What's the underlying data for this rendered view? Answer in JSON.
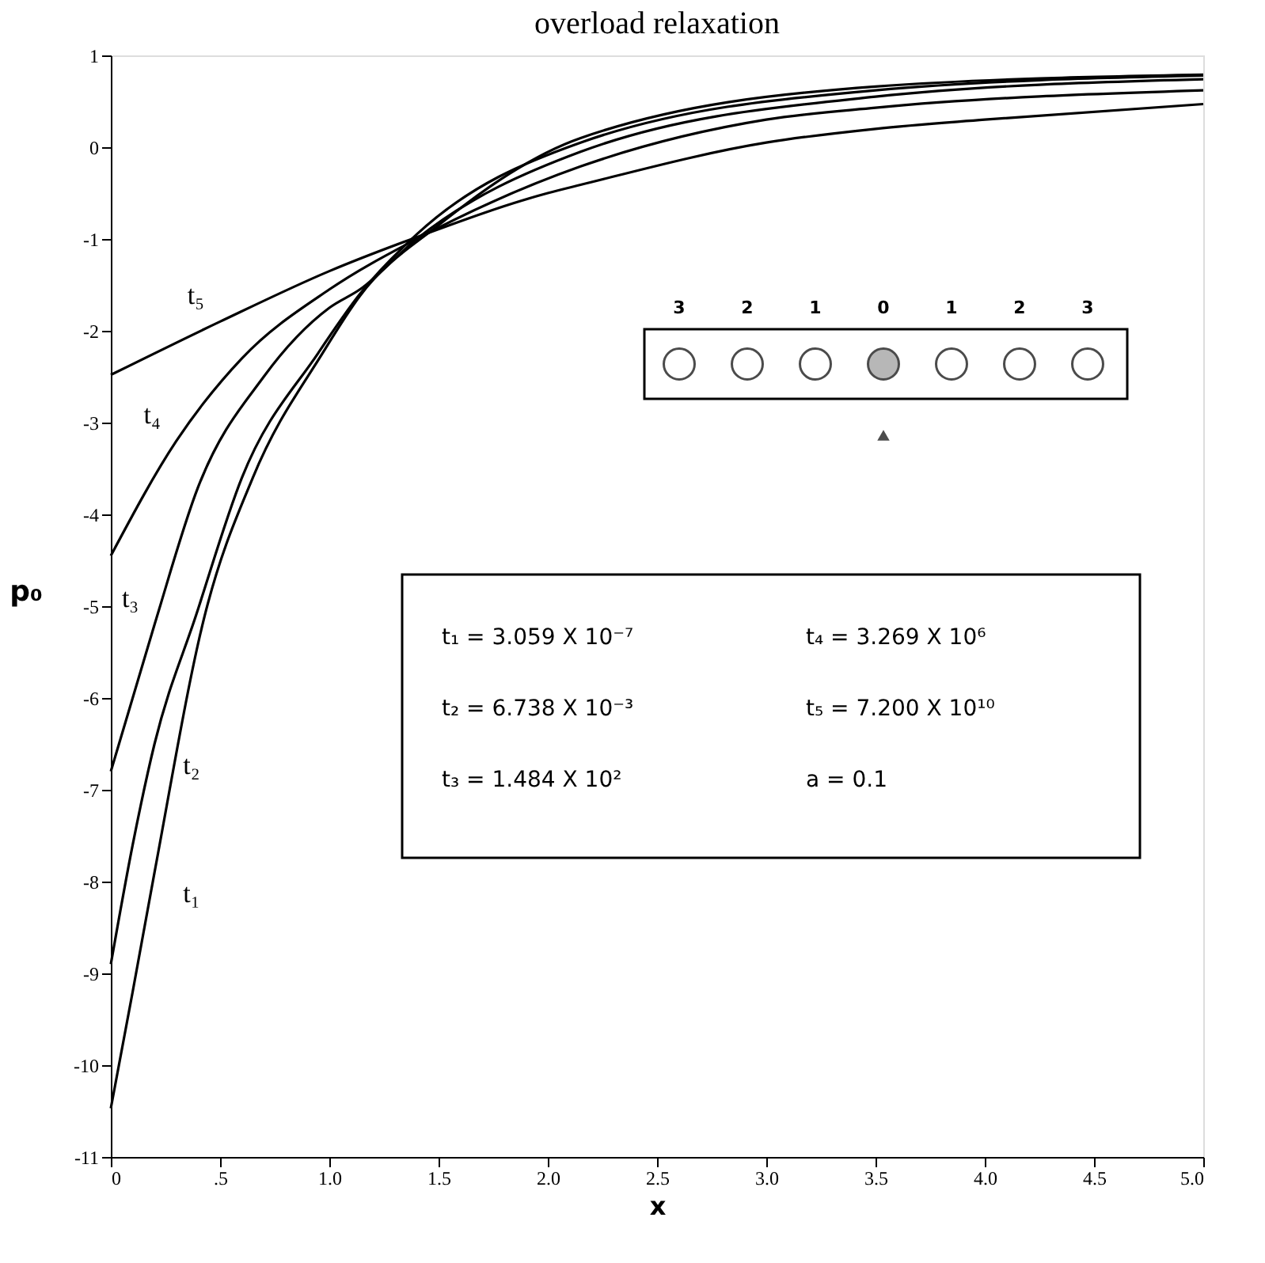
{
  "chart_data": {
    "type": "line",
    "title": "overload relaxation",
    "xlabel": "x",
    "ylabel": "p₀",
    "xlim": [
      0,
      5
    ],
    "ylim": [
      -11,
      1
    ],
    "xticks": [
      0,
      {
        "value": 0.5,
        "label": ".5"
      },
      {
        "value": 1,
        "label": "1.0"
      },
      {
        "value": 1.5,
        "label": "1.5"
      },
      {
        "value": 2,
        "label": "2.0"
      },
      {
        "value": 2.5,
        "label": "2.5"
      },
      {
        "value": 3,
        "label": "3.0"
      },
      {
        "value": 3.5,
        "label": "3.5"
      },
      {
        "value": 4,
        "label": "4.0"
      },
      {
        "value": 4.5,
        "label": "4.5"
      },
      {
        "value": 5,
        "label": "5.0"
      }
    ],
    "yticks": [
      1,
      0,
      -1,
      -2,
      -3,
      -4,
      -5,
      -6,
      -7,
      -8,
      -9,
      -10,
      -11
    ],
    "grid": false,
    "marker": "none",
    "line_style": "solid",
    "series": [
      {
        "color": "#000000",
        "x": [
          0,
          0.1,
          0.2,
          0.43,
          0.65,
          0.97,
          1.14,
          1.5,
          2.15,
          3.5,
          5
        ],
        "values": [
          -10.47,
          -9.2,
          -7.9,
          -5.1,
          -3.6,
          -2.24,
          -1.62,
          -0.85,
          0.1,
          0.66,
          0.79
        ]
      },
      {
        "color": "#000000",
        "x": [
          0,
          0.1,
          0.2,
          0.39,
          0.6,
          0.95,
          1.14,
          1.4,
          2.15,
          3.5,
          5
        ],
        "values": [
          -8.9,
          -7.6,
          -6.5,
          -5.1,
          -3.6,
          -2.24,
          -1.6,
          -0.95,
          0.05,
          0.62,
          0.78
        ]
      },
      {
        "color": "#000000",
        "x": [
          0,
          0.2,
          0.4,
          0.7,
          1.0,
          1.14,
          1.4,
          2.15,
          3.5,
          5
        ],
        "values": [
          -6.8,
          -5.2,
          -3.7,
          -2.5,
          -1.75,
          -1.55,
          -1.0,
          -0.05,
          0.55,
          0.74
        ]
      },
      {
        "color": "#000000",
        "x": [
          0,
          0.3,
          0.6,
          1.0,
          1.4,
          2.15,
          3,
          3.5,
          5
        ],
        "values": [
          -4.45,
          -3.2,
          -2.3,
          -1.55,
          -1.0,
          -0.21,
          0.3,
          0.43,
          0.62
        ]
      },
      {
        "color": "#000000",
        "x": [
          0,
          0.5,
          1.0,
          1.4,
          2.0,
          2.15,
          3,
          3.5,
          4,
          5
        ],
        "values": [
          -2.48,
          -1.9,
          -1.35,
          -0.98,
          -0.5,
          -0.41,
          0.05,
          0.2,
          0.3,
          0.47
        ]
      }
    ],
    "annotations": [
      {
        "text": "t₁",
        "x": 0.2,
        "y": -7.9
      },
      {
        "text": "t₂",
        "x": 0.2,
        "y": -6.5
      },
      {
        "text": "t₃",
        "x": 0.2,
        "y": -5.2
      },
      {
        "text": "t₄",
        "x": 0.3,
        "y": -3.2
      },
      {
        "text": "t₅",
        "x": 0.5,
        "y": -1.9
      },
      "t₁  =  3.059 X 10⁻⁷",
      "t₂  =  6.738 X 10⁻³",
      "t₃  =  1.484 X 10²",
      "t₄  =  3.269 X 10⁶",
      "t₅  =  7.200 X 10¹⁰",
      "a  =  0.1",
      "3",
      "2",
      "1",
      "0",
      "1",
      "2",
      "3"
    ]
  }
}
